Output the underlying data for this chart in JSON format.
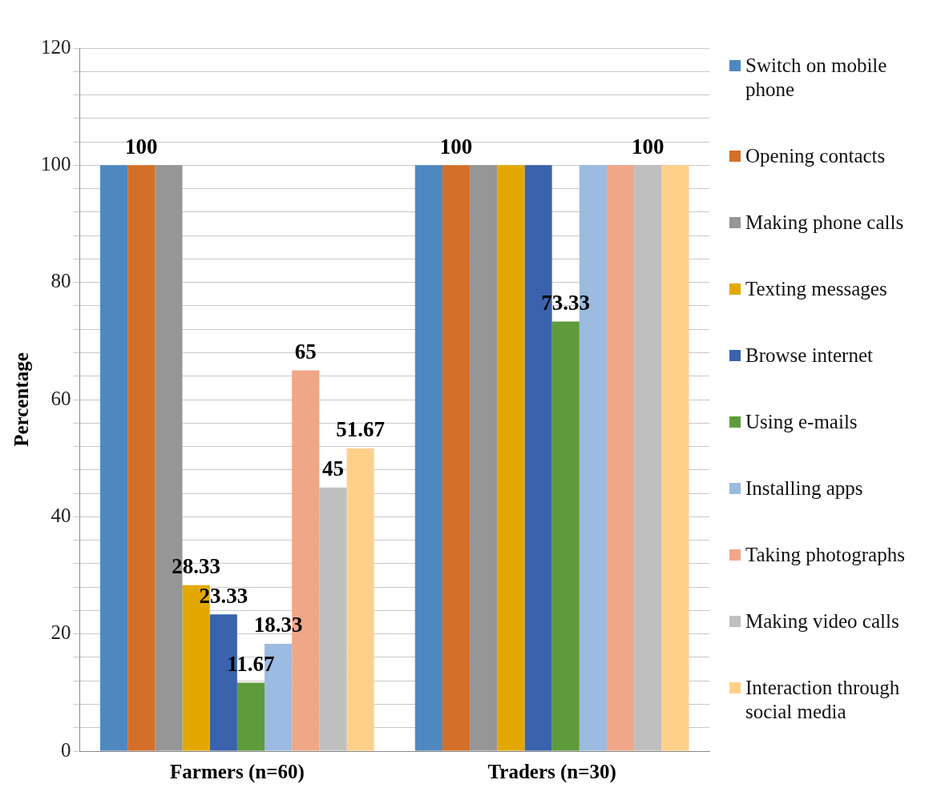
{
  "chart_data": {
    "type": "bar",
    "categories": [
      "Farmers (n=60)",
      "Traders (n=30)"
    ],
    "ylabel": "Percentage",
    "ylim": [
      0,
      120
    ],
    "yticks": [
      0,
      {
        "value": 4,
        "label": null
      },
      {
        "value": 8,
        "label": null
      },
      {
        "value": 12,
        "label": null
      },
      {
        "value": 16,
        "label": null
      },
      20,
      {
        "value": 24,
        "label": null
      },
      {
        "value": 28,
        "label": null
      },
      {
        "value": 32,
        "label": null
      },
      {
        "value": 36,
        "label": null
      },
      40,
      {
        "value": 44,
        "label": null
      },
      {
        "value": 48,
        "label": null
      },
      {
        "value": 52,
        "label": null
      },
      {
        "value": 56,
        "label": null
      },
      60,
      {
        "value": 64,
        "label": null
      },
      {
        "value": 68,
        "label": null
      },
      {
        "value": 72,
        "label": null
      },
      {
        "value": 76,
        "label": null
      },
      80,
      {
        "value": 84,
        "label": null
      },
      {
        "value": 88,
        "label": null
      },
      {
        "value": 92,
        "label": null
      },
      {
        "value": 96,
        "label": null
      },
      100,
      {
        "value": 104,
        "label": null
      },
      {
        "value": 108,
        "label": null
      },
      {
        "value": 112,
        "label": null
      },
      {
        "value": 116,
        "label": null
      },
      120
    ],
    "grid": "y",
    "legend": "right",
    "series": [
      {
        "name": "Switch on mobile phone",
        "color": "#4f88c0",
        "values": [
          100,
          100
        ],
        "value_labels": [
          null,
          null
        ]
      },
      {
        "name": "Opening contacts",
        "color": "#d46f2a",
        "values": [
          100,
          100
        ],
        "value_labels": [
          "100",
          "100"
        ]
      },
      {
        "name": "Making phone calls",
        "color": "#969696",
        "values": [
          100,
          100
        ],
        "value_labels": [
          null,
          null
        ]
      },
      {
        "name": "Texting messages",
        "color": "#e3a800",
        "values": [
          28.33,
          100
        ],
        "value_labels": [
          "28.33",
          null
        ]
      },
      {
        "name": "Browse internet",
        "color": "#3a62ad",
        "values": [
          23.33,
          100
        ],
        "value_labels": [
          "23.33",
          null
        ]
      },
      {
        "name": "Using e-mails",
        "color": "#5f9b3b",
        "values": [
          11.67,
          73.33
        ],
        "value_labels": [
          "11.67",
          "73.33"
        ]
      },
      {
        "name": "Installing apps",
        "color": "#9bbbe0",
        "values": [
          18.33,
          100
        ],
        "value_labels": [
          "18.33",
          null
        ]
      },
      {
        "name": "Taking photographs",
        "color": "#f0a788",
        "values": [
          65,
          100
        ],
        "value_labels": [
          "65",
          null
        ]
      },
      {
        "name": "Making video calls",
        "color": "#bfbfbf",
        "values": [
          45,
          100
        ],
        "value_labels": [
          "45",
          "100"
        ]
      },
      {
        "name": "Interaction through social media",
        "color": "#ffd08a",
        "values": [
          51.67,
          100
        ],
        "value_labels": [
          "51.67",
          null
        ]
      }
    ]
  }
}
